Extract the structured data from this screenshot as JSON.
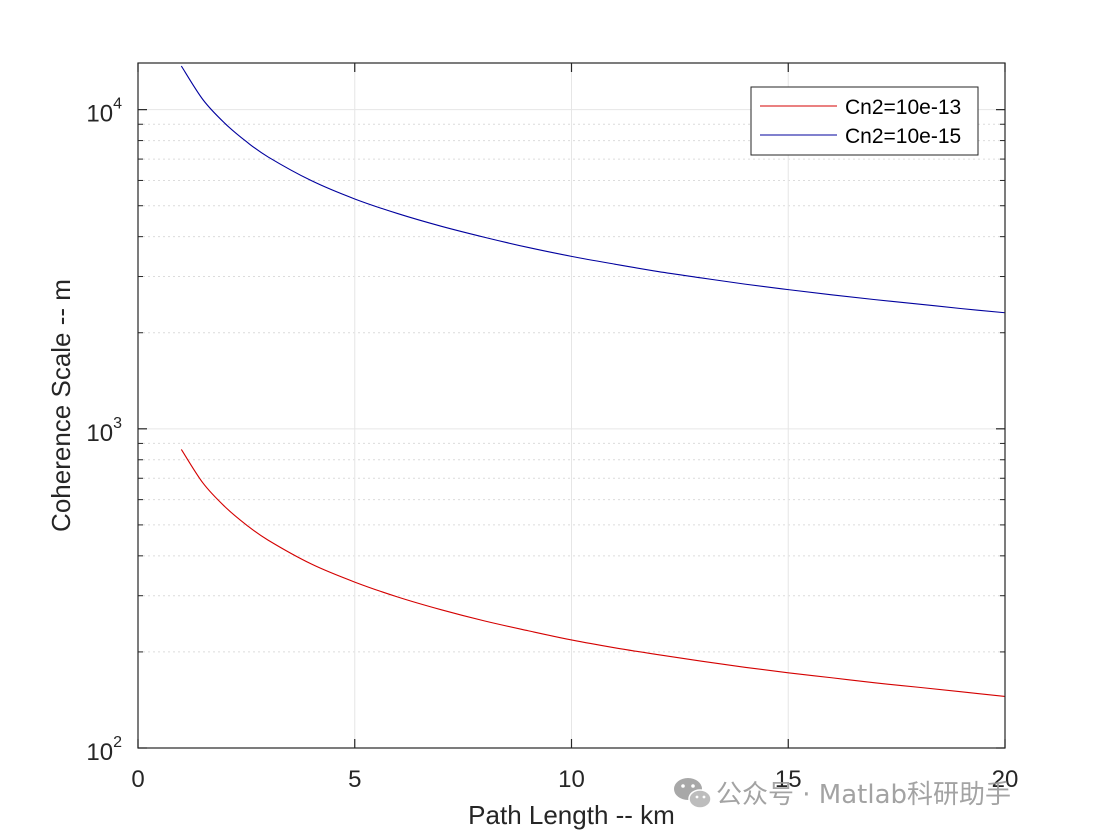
{
  "chart_data": {
    "type": "line",
    "xlabel": "Path Length -- km",
    "ylabel": "Coherence Scale -- m",
    "xlim": [
      0,
      20
    ],
    "ylim": [
      100,
      14000
    ],
    "yscale": "log",
    "grid": true,
    "minor_grid": true,
    "legend_position": "top-right",
    "x_ticks": [
      {
        "value": 0,
        "label": "0"
      },
      {
        "value": 5,
        "label": "5"
      },
      {
        "value": 10,
        "label": "10"
      },
      {
        "value": 15,
        "label": "15"
      },
      {
        "value": 20,
        "label": "20"
      }
    ],
    "y_ticks": [
      {
        "value": 100,
        "base": "10",
        "exp": "2"
      },
      {
        "value": 1000,
        "base": "10",
        "exp": "3"
      },
      {
        "value": 10000,
        "base": "10",
        "exp": "4"
      }
    ],
    "series": [
      {
        "name": "Cn2=10e-13",
        "color": "#d40000",
        "x": [
          1,
          1.5,
          2,
          2.5,
          3,
          4,
          5,
          6,
          7,
          8,
          9,
          10,
          11,
          12,
          13,
          14,
          15,
          16,
          17,
          18,
          19,
          20
        ],
        "y": [
          862,
          676,
          571,
          500,
          448,
          377,
          331,
          297,
          271,
          250,
          233,
          218,
          206,
          196,
          187,
          179,
          172,
          166,
          160,
          155,
          150,
          145
        ]
      },
      {
        "name": "Cn2=10e-15",
        "color": "#00009e",
        "x": [
          1,
          1.5,
          2,
          2.5,
          3,
          4,
          5,
          6,
          7,
          8,
          9,
          10,
          11,
          12,
          13,
          14,
          15,
          16,
          17,
          18,
          19,
          20
        ],
        "y": [
          13700,
          10740,
          9070,
          7940,
          7110,
          5990,
          5250,
          4720,
          4310,
          3980,
          3700,
          3470,
          3280,
          3110,
          2970,
          2840,
          2730,
          2630,
          2540,
          2460,
          2380,
          2310
        ]
      }
    ]
  },
  "watermark": {
    "text": "公众号 · Matlab科研助手",
    "icon": "wechat-icon"
  }
}
